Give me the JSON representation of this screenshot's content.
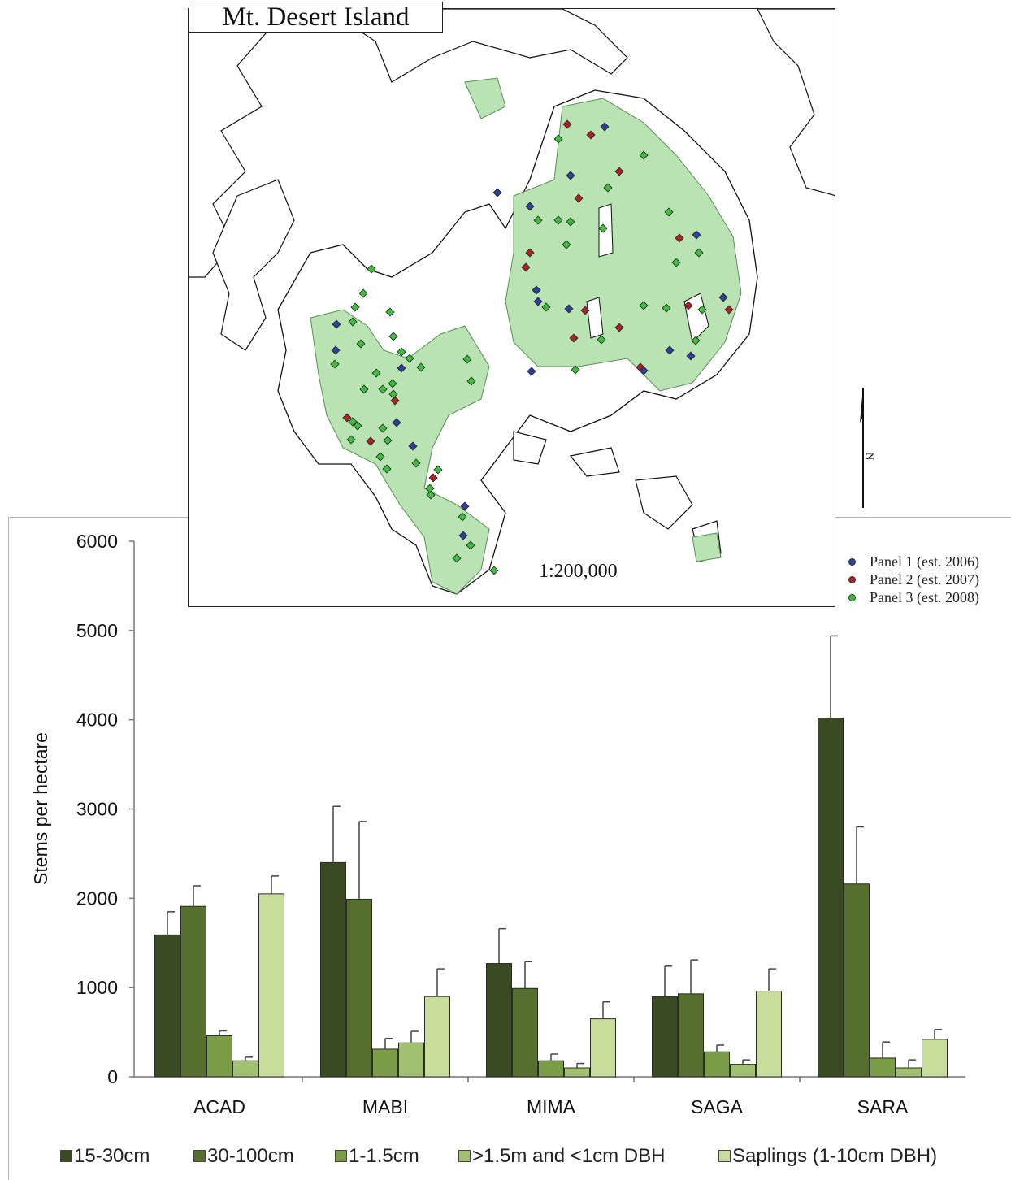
{
  "map": {
    "title": "Mt. Desert Island",
    "scale_label": "1:200,000",
    "north_label": "N",
    "legend": [
      {
        "label": "Panel 1 (est. 2006)",
        "color": "#2f3f9e"
      },
      {
        "label": "Panel 2 (est. 2007)",
        "color": "#b0202a"
      },
      {
        "label": "Panel 3 (est. 2008)",
        "color": "#3cbf3c"
      }
    ],
    "land_color": "#cfeacb",
    "park_color": "#b9e3b3"
  },
  "chart_data": {
    "type": "bar",
    "categories": [
      "ACAD",
      "MABI",
      "MIMA",
      "SAGA",
      "SARA"
    ],
    "ylabel": "Stems per hectare",
    "xlabel": "",
    "ylim": [
      0,
      6000
    ],
    "yticks": [
      0,
      1000,
      2000,
      3000,
      4000,
      5000,
      6000
    ],
    "grid": false,
    "legend_position": "bottom",
    "series": [
      {
        "name": "15-30cm",
        "color": "#3a4a22",
        "values": [
          1590,
          2400,
          1270,
          900,
          4020
        ],
        "errors": [
          260,
          630,
          390,
          340,
          920
        ]
      },
      {
        "name": "30-100cm",
        "color": "#566f2e",
        "values": [
          1910,
          1990,
          990,
          930,
          2160
        ],
        "errors": [
          230,
          870,
          300,
          380,
          640
        ]
      },
      {
        "name": "1-1.5cm",
        "color": "#7a9c46",
        "values": [
          460,
          310,
          180,
          280,
          210
        ],
        "errors": [
          55,
          120,
          75,
          75,
          180
        ]
      },
      {
        "name": ">1.5m and <1cm DBH",
        "color": "#a1c070",
        "values": [
          180,
          380,
          100,
          140,
          100
        ],
        "errors": [
          40,
          130,
          50,
          50,
          90
        ]
      },
      {
        "name": "Saplings (1-10cm DBH)",
        "color": "#c8dd9c",
        "values": [
          2050,
          900,
          650,
          960,
          420
        ],
        "errors": [
          200,
          310,
          190,
          250,
          110
        ]
      }
    ]
  }
}
